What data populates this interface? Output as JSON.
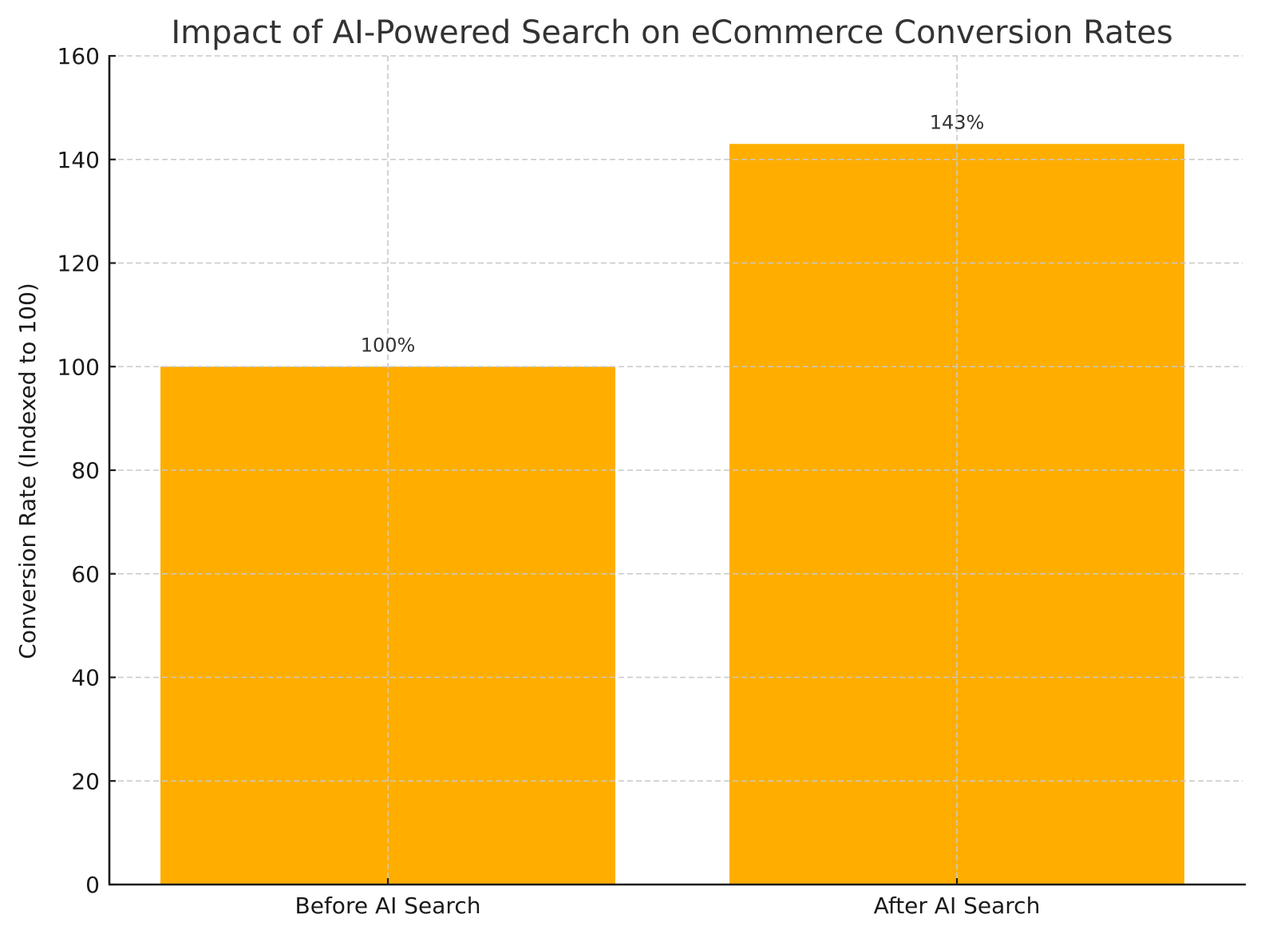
{
  "chart_data": {
    "type": "bar",
    "title": "Impact of AI-Powered Search on eCommerce Conversion Rates",
    "xlabel": "",
    "ylabel": "Conversion Rate (Indexed to 100)",
    "categories": [
      "Before AI Search",
      "After AI Search"
    ],
    "values": [
      100,
      143
    ],
    "data_labels": [
      "100%",
      "143%"
    ],
    "ylim": [
      0,
      160
    ],
    "yticks": [
      0,
      20,
      40,
      60,
      80,
      100,
      120,
      140,
      160
    ],
    "grid": true,
    "legend": null,
    "bar_color": "#ffae00"
  }
}
